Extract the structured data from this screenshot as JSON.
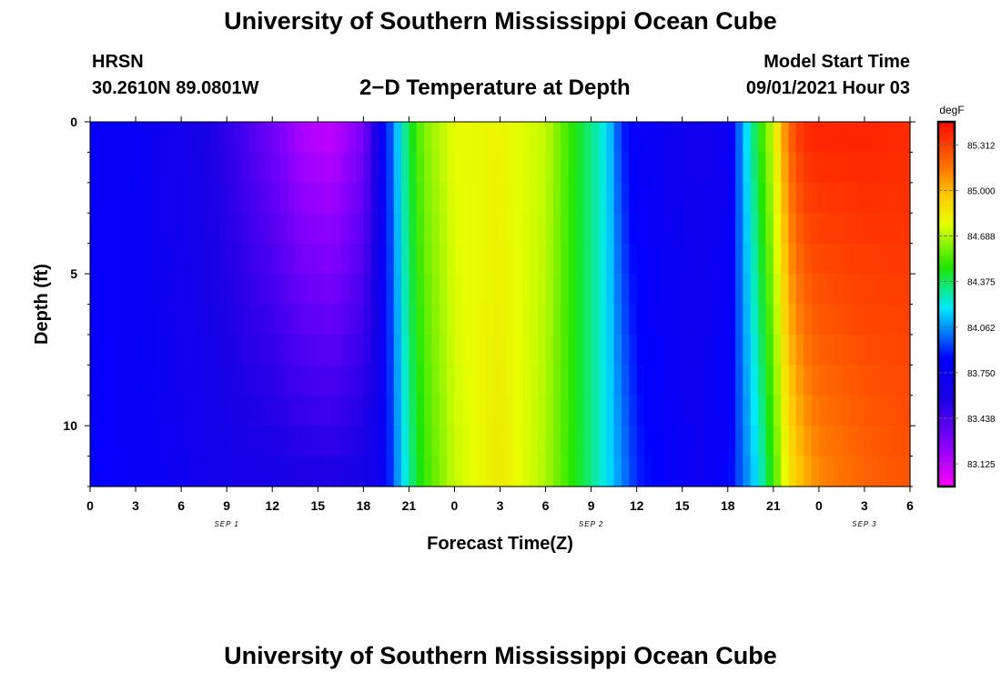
{
  "header": {
    "title": "University of Southern Mississippi Ocean Cube",
    "station": "HRSN",
    "coords": "30.2610N  89.0801W",
    "subtitle": "2−D Temperature at Depth",
    "model_label": "Model Start Time",
    "model_time": "09/01/2021 Hour 03"
  },
  "footer": {
    "title": "University of Southern Mississippi Ocean Cube"
  },
  "chart_data": {
    "type": "heatmap",
    "xlabel": "Forecast Time(Z)",
    "ylabel": "Depth (ft)",
    "x_hours": [
      0,
      54
    ],
    "x_tick_labels": [
      "0",
      "3",
      "6",
      "9",
      "12",
      "15",
      "18",
      "21",
      "0",
      "3",
      "6",
      "9",
      "12",
      "15",
      "18",
      "21",
      "0",
      "3",
      "6"
    ],
    "date_labels": [
      "SEP 1",
      "SEP 2",
      "SEP 3"
    ],
    "ylim": [
      0,
      12
    ],
    "y_tick_labels": [
      "0",
      "5",
      "10"
    ],
    "y_tick_values": [
      0,
      5,
      10
    ],
    "colorbar": {
      "unit": "degF",
      "range": [
        82.97,
        85.47
      ],
      "tick_labels": [
        "85.312",
        "85.000",
        "84.688",
        "84.375",
        "84.062",
        "83.750",
        "83.438",
        "83.125"
      ],
      "tick_values": [
        85.312,
        85.0,
        84.688,
        84.375,
        84.062,
        83.75,
        83.438,
        83.125
      ]
    },
    "temperature_profile": [
      {
        "hour": 0,
        "surface": 83.8,
        "bottom": 83.82
      },
      {
        "hour": 3,
        "surface": 83.76,
        "bottom": 83.78
      },
      {
        "hour": 6,
        "surface": 83.62,
        "bottom": 83.7
      },
      {
        "hour": 8,
        "surface": 83.56,
        "bottom": 83.62
      },
      {
        "hour": 10,
        "surface": 83.45,
        "bottom": 83.6
      },
      {
        "hour": 12,
        "surface": 83.32,
        "bottom": 83.6
      },
      {
        "hour": 14,
        "surface": 83.15,
        "bottom": 83.58
      },
      {
        "hour": 16,
        "surface": 83.1,
        "bottom": 83.57
      },
      {
        "hour": 18,
        "surface": 83.3,
        "bottom": 83.6
      },
      {
        "hour": 19,
        "surface": 83.62,
        "bottom": 83.66
      },
      {
        "hour": 20,
        "surface": 84.06,
        "bottom": 83.98
      },
      {
        "hour": 21,
        "surface": 84.4,
        "bottom": 84.3
      },
      {
        "hour": 22,
        "surface": 84.62,
        "bottom": 84.5
      },
      {
        "hour": 24,
        "surface": 84.78,
        "bottom": 84.72
      },
      {
        "hour": 27,
        "surface": 84.8,
        "bottom": 84.85
      },
      {
        "hour": 30,
        "surface": 84.72,
        "bottom": 84.68
      },
      {
        "hour": 32,
        "surface": 84.45,
        "bottom": 84.45
      },
      {
        "hour": 34,
        "surface": 84.2,
        "bottom": 84.2
      },
      {
        "hour": 35,
        "surface": 83.9,
        "bottom": 84.05
      },
      {
        "hour": 36,
        "surface": 83.78,
        "bottom": 83.9
      },
      {
        "hour": 38,
        "surface": 83.7,
        "bottom": 83.8
      },
      {
        "hour": 40,
        "surface": 83.66,
        "bottom": 83.7
      },
      {
        "hour": 42,
        "surface": 83.7,
        "bottom": 83.82
      },
      {
        "hour": 43,
        "surface": 84.1,
        "bottom": 84.0
      },
      {
        "hour": 44,
        "surface": 84.45,
        "bottom": 84.2
      },
      {
        "hour": 45,
        "surface": 84.75,
        "bottom": 84.5
      },
      {
        "hour": 46,
        "surface": 85.2,
        "bottom": 84.85
      },
      {
        "hour": 47,
        "surface": 85.38,
        "bottom": 85.0
      },
      {
        "hour": 48,
        "surface": 85.4,
        "bottom": 85.1
      },
      {
        "hour": 51,
        "surface": 85.4,
        "bottom": 85.2
      },
      {
        "hour": 54,
        "surface": 85.38,
        "bottom": 85.25
      }
    ]
  }
}
